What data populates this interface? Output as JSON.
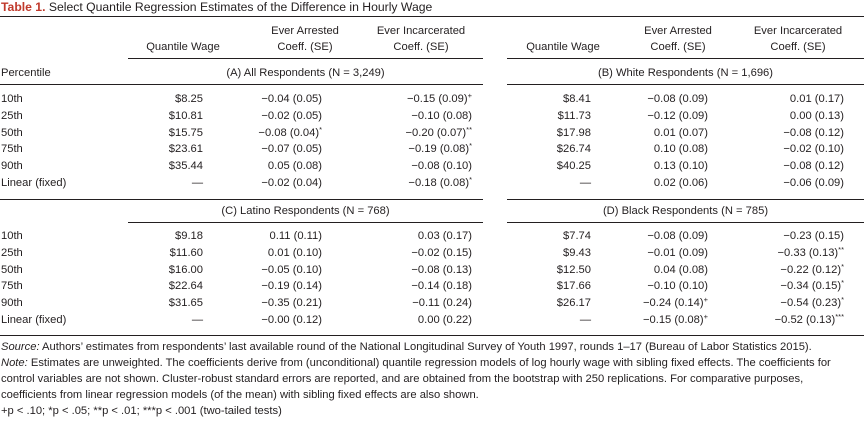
{
  "caption": {
    "label": "Table 1.",
    "text": "Select Quantile Regression Estimates of the Difference in Hourly Wage"
  },
  "header": {
    "quantile_wage": "Quantile Wage",
    "ever_arrested_1": "Ever Arrested",
    "ever_incarcerated_1": "Ever Incarcerated",
    "coeff_se": "Coeff. (SE)"
  },
  "stub_label": "Percentile",
  "panels": [
    {
      "title": "(A) All Respondents (N = 3,249)",
      "rows": [
        {
          "pct": "10th",
          "wage": "$8.25",
          "arr": "−0.04 (0.05)",
          "arr_sup": "",
          "inc": "−0.15 (0.09)",
          "inc_sup": "+"
        },
        {
          "pct": "25th",
          "wage": "$10.81",
          "arr": "−0.02 (0.05)",
          "arr_sup": "",
          "inc": "−0.10 (0.08)",
          "inc_sup": ""
        },
        {
          "pct": "50th",
          "wage": "$15.75",
          "arr": "−0.08 (0.04)",
          "arr_sup": "*",
          "inc": "−0.20 (0.07)",
          "inc_sup": "**"
        },
        {
          "pct": "75th",
          "wage": "$23.61",
          "arr": "−0.07 (0.05)",
          "arr_sup": "",
          "inc": "−0.19 (0.08)",
          "inc_sup": "*"
        },
        {
          "pct": "90th",
          "wage": "$35.44",
          "arr": "0.05 (0.08)",
          "arr_sup": "",
          "inc": "−0.08 (0.10)",
          "inc_sup": ""
        },
        {
          "pct": "Linear (fixed)",
          "wage": "—",
          "arr": "−0.02 (0.04)",
          "arr_sup": "",
          "inc": "−0.18 (0.08)",
          "inc_sup": "*"
        }
      ]
    },
    {
      "title": "(B) White Respondents (N = 1,696)",
      "rows": [
        {
          "wage": "$8.41",
          "arr": "−0.08 (0.09)",
          "arr_sup": "",
          "inc": "0.01 (0.17)",
          "inc_sup": ""
        },
        {
          "wage": "$11.73",
          "arr": "−0.12 (0.09)",
          "arr_sup": "",
          "inc": "0.00 (0.13)",
          "inc_sup": ""
        },
        {
          "wage": "$17.98",
          "arr": "0.01 (0.07)",
          "arr_sup": "",
          "inc": "−0.08 (0.12)",
          "inc_sup": ""
        },
        {
          "wage": "$26.74",
          "arr": "0.10 (0.08)",
          "arr_sup": "",
          "inc": "−0.02 (0.10)",
          "inc_sup": ""
        },
        {
          "wage": "$40.25",
          "arr": "0.13 (0.10)",
          "arr_sup": "",
          "inc": "−0.08 (0.12)",
          "inc_sup": ""
        },
        {
          "wage": "—",
          "arr": "0.02 (0.06)",
          "arr_sup": "",
          "inc": "−0.06 (0.09)",
          "inc_sup": ""
        }
      ]
    },
    {
      "title": "(C) Latino Respondents (N = 768)",
      "rows": [
        {
          "pct": "10th",
          "wage": "$9.18",
          "arr": "0.11 (0.11)",
          "arr_sup": "",
          "inc": "0.03 (0.17)",
          "inc_sup": ""
        },
        {
          "pct": "25th",
          "wage": "$11.60",
          "arr": "0.01 (0.10)",
          "arr_sup": "",
          "inc": "−0.02 (0.15)",
          "inc_sup": ""
        },
        {
          "pct": "50th",
          "wage": "$16.00",
          "arr": "−0.05 (0.10)",
          "arr_sup": "",
          "inc": "−0.08 (0.13)",
          "inc_sup": ""
        },
        {
          "pct": "75th",
          "wage": "$22.64",
          "arr": "−0.19 (0.14)",
          "arr_sup": "",
          "inc": "−0.14 (0.18)",
          "inc_sup": ""
        },
        {
          "pct": "90th",
          "wage": "$31.65",
          "arr": "−0.35 (0.21)",
          "arr_sup": "",
          "inc": "−0.11 (0.24)",
          "inc_sup": ""
        },
        {
          "pct": "Linear (fixed)",
          "wage": "—",
          "arr": "−0.00 (0.12)",
          "arr_sup": "",
          "inc": "0.00 (0.22)",
          "inc_sup": ""
        }
      ]
    },
    {
      "title": "(D) Black Respondents (N = 785)",
      "rows": [
        {
          "wage": "$7.74",
          "arr": "−0.08 (0.09)",
          "arr_sup": "",
          "inc": "−0.23 (0.15)",
          "inc_sup": ""
        },
        {
          "wage": "$9.43",
          "arr": "−0.01 (0.09)",
          "arr_sup": "",
          "inc": "−0.33 (0.13)",
          "inc_sup": "**"
        },
        {
          "wage": "$12.50",
          "arr": "0.04 (0.08)",
          "arr_sup": "",
          "inc": "−0.22 (0.12)",
          "inc_sup": "*"
        },
        {
          "wage": "$17.66",
          "arr": "−0.10 (0.10)",
          "arr_sup": "",
          "inc": "−0.34 (0.15)",
          "inc_sup": "*"
        },
        {
          "wage": "$26.17",
          "arr": "−0.24 (0.14)",
          "arr_sup": "+",
          "inc": "−0.54 (0.23)",
          "inc_sup": "*"
        },
        {
          "wage": "—",
          "arr": "−0.15 (0.08)",
          "arr_sup": "+",
          "inc": "−0.52 (0.13)",
          "inc_sup": "***"
        }
      ]
    }
  ],
  "notes": {
    "source_label": "Source:",
    "source_text": " Authors’ estimates from respondents’ last available round of the National Longitudinal Survey of Youth 1997, rounds 1–17 (Bureau of Labor Statistics 2015).",
    "note_label": "Note:",
    "note_text": " Estimates are unweighted. The coefficients derive from (unconditional) quantile regression models of log hourly wage with sibling fixed effects. The coefficients for control variables are not shown. Cluster-robust standard errors are reported, and are obtained from the bootstrap with 250 replications. For comparative purposes, coefficients from linear regression models (of the mean) with sibling fixed effects are also shown.",
    "sig_text": "+p < .10; *p < .05; **p < .01; ***p < .001 (two-tailed tests)"
  }
}
